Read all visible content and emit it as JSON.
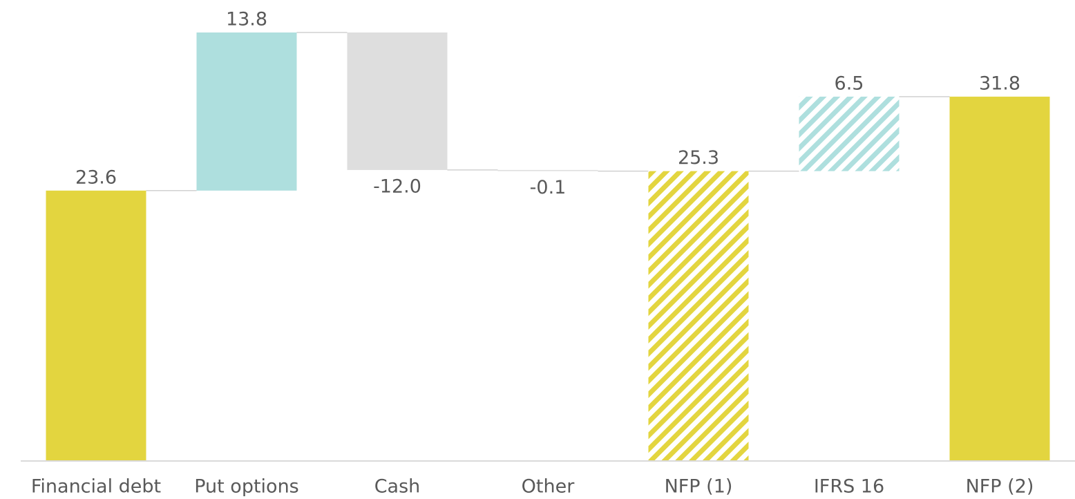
{
  "chart_data": {
    "type": "waterfall",
    "categories": [
      "Financial debt",
      "Put options",
      "Cash",
      "Other",
      "NFP (1)",
      "IFRS 16",
      "NFP (2)"
    ],
    "values": [
      23.6,
      13.8,
      -12.0,
      -0.1,
      25.3,
      6.5,
      31.8
    ],
    "value_labels": [
      "23.6",
      "13.8",
      "-12.0",
      "-0.1",
      "25.3",
      "6.5",
      "31.8"
    ],
    "measures": [
      "total",
      "relative",
      "relative",
      "relative",
      "total",
      "relative",
      "total"
    ],
    "colors": [
      "#e3d53f",
      "#aedfde",
      "#dedede",
      "#dedede",
      "#e3d53f",
      "#aedfde",
      "#e3d53f"
    ],
    "hatched": [
      false,
      false,
      false,
      false,
      true,
      true,
      false
    ]
  }
}
